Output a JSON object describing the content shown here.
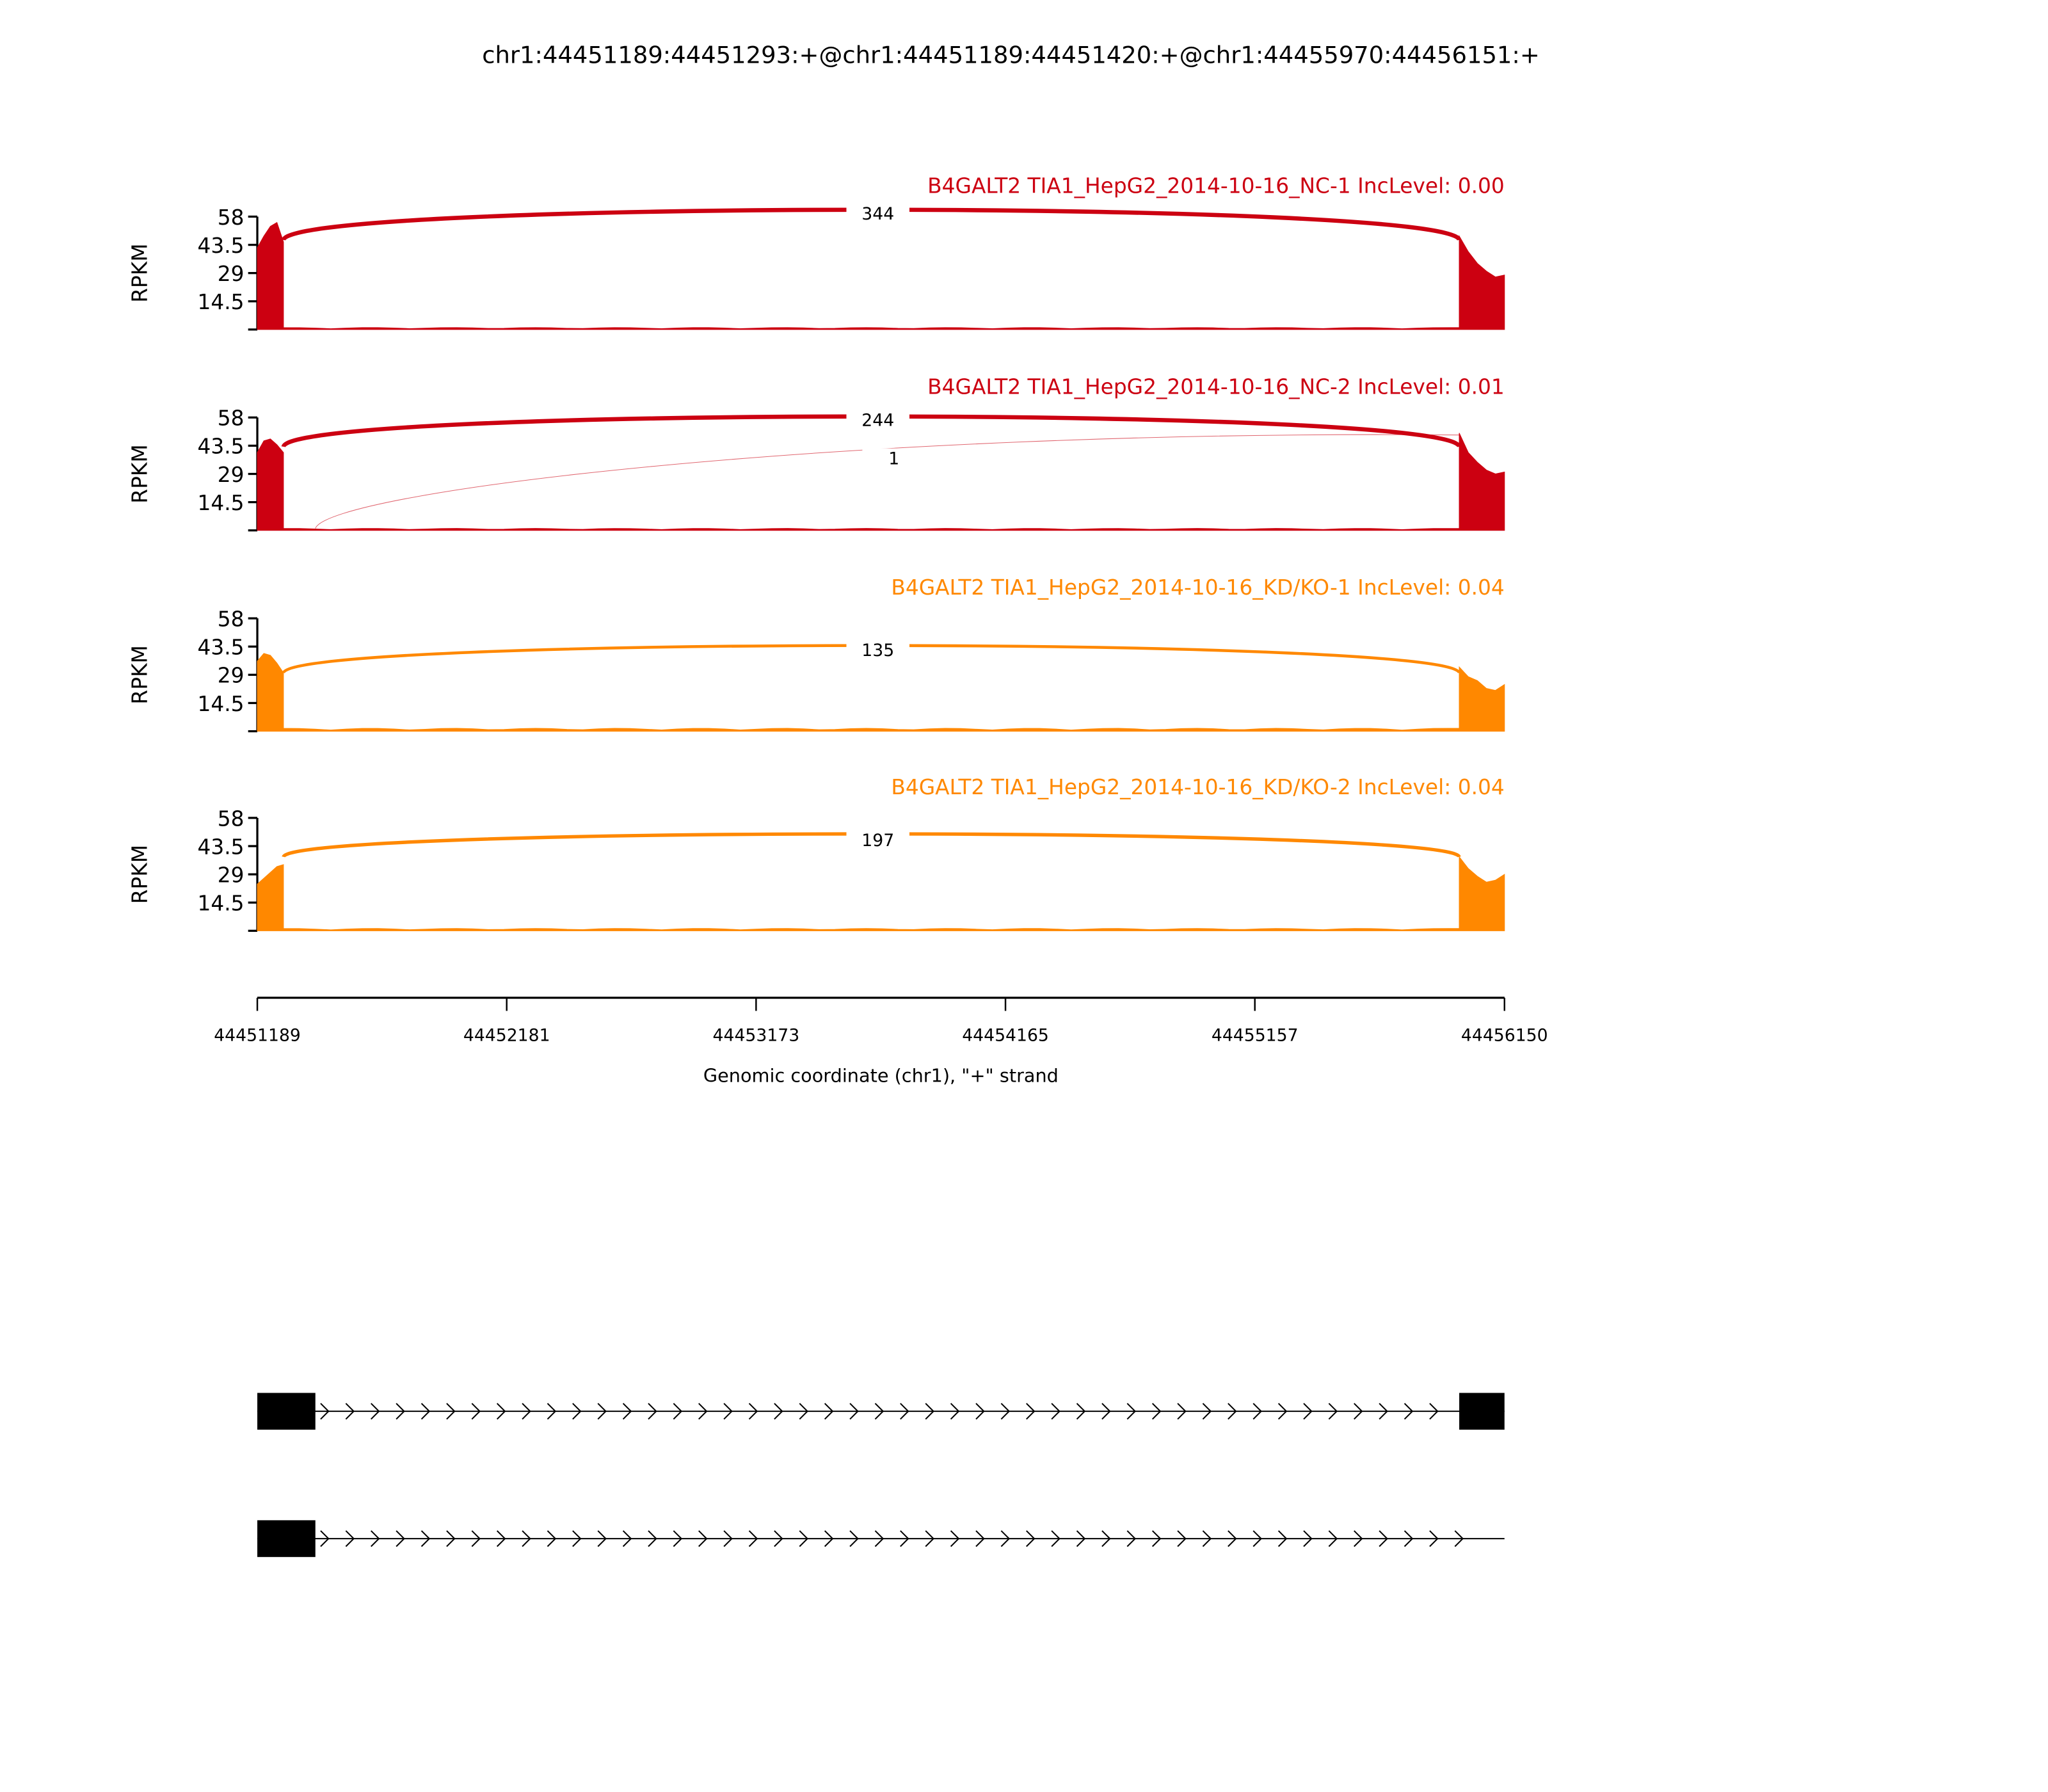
{
  "chart_data": {
    "type": "area",
    "title": "chr1:44451189:44451293:+@chr1:44451189:44451420:+@chr1:44455970:44456151:+",
    "xlabel": "Genomic coordinate (chr1), \"+\" strand",
    "ylabel": "RPKM",
    "xlim": [
      44451189,
      44456150
    ],
    "x_ticks": [
      "44451189",
      "44452181",
      "44453173",
      "44454165",
      "44455157",
      "44456150"
    ],
    "ylim": [
      0,
      58
    ],
    "y_ticks": [
      "14.5",
      "29",
      "43.5",
      "58"
    ],
    "exons": [
      [
        44451189,
        44451293
      ],
      [
        44455970,
        44456151
      ]
    ],
    "panels": [
      {
        "label": "B4GALT2 TIA1_HepG2_2014-10-16_NC-1 IncLevel: 0.00",
        "color": "#cc0011",
        "left_exon_rpkm": [
          42,
          48,
          53,
          55,
          45
        ],
        "right_exon_rpkm": [
          48,
          40,
          34,
          30,
          27,
          28
        ],
        "intron_rpkm": 1,
        "junctions": [
          {
            "count": "344",
            "from": 44451293,
            "to": 44455970,
            "width": 3.2,
            "y_end": 46,
            "peak": 64
          }
        ]
      },
      {
        "label": "B4GALT2 TIA1_HepG2_2014-10-16_NC-2 IncLevel: 0.01",
        "color": "#cc0011",
        "left_exon_rpkm": [
          40,
          46,
          47,
          44,
          40
        ],
        "right_exon_rpkm": [
          50,
          40,
          35,
          31,
          29,
          30
        ],
        "intron_rpkm": 1,
        "junctions": [
          {
            "count": "244",
            "from": 44451293,
            "to": 44455970,
            "width": 3.2,
            "y_end": 43,
            "peak": 61
          },
          {
            "count": "1",
            "from": 44451420,
            "to": 44455970,
            "width": 0.5,
            "y_end": 49,
            "peak": 52,
            "low_start": true
          }
        ]
      },
      {
        "label": "B4GALT2 TIA1_HepG2_2014-10-16_KD/KO-1 IncLevel: 0.04",
        "color": "#ff8800",
        "left_exon_rpkm": [
          36,
          40,
          39,
          35,
          30
        ],
        "right_exon_rpkm": [
          33,
          28,
          26,
          22,
          21,
          24
        ],
        "intron_rpkm": 1.5,
        "junctions": [
          {
            "count": "135",
            "from": 44451293,
            "to": 44455970,
            "width": 2.2,
            "y_end": 30,
            "peak": 46
          }
        ]
      },
      {
        "label": "B4GALT2 TIA1_HepG2_2014-10-16_KD/KO-2 IncLevel: 0.04",
        "color": "#ff8800",
        "left_exon_rpkm": [
          24,
          27,
          30,
          33,
          34
        ],
        "right_exon_rpkm": [
          38,
          32,
          28,
          25,
          26,
          29
        ],
        "intron_rpkm": 1.2,
        "junctions": [
          {
            "count": "197",
            "from": 44451293,
            "to": 44455970,
            "width": 2.6,
            "y_end": 38,
            "peak": 51
          }
        ]
      }
    ],
    "gene_models": [
      {
        "exons": [
          [
            44451189,
            44451420
          ],
          [
            44455970,
            44456150
          ]
        ],
        "line_end": 44456150
      },
      {
        "exons": [
          [
            44451189,
            44451420
          ]
        ],
        "line_end": 44456150
      }
    ]
  }
}
